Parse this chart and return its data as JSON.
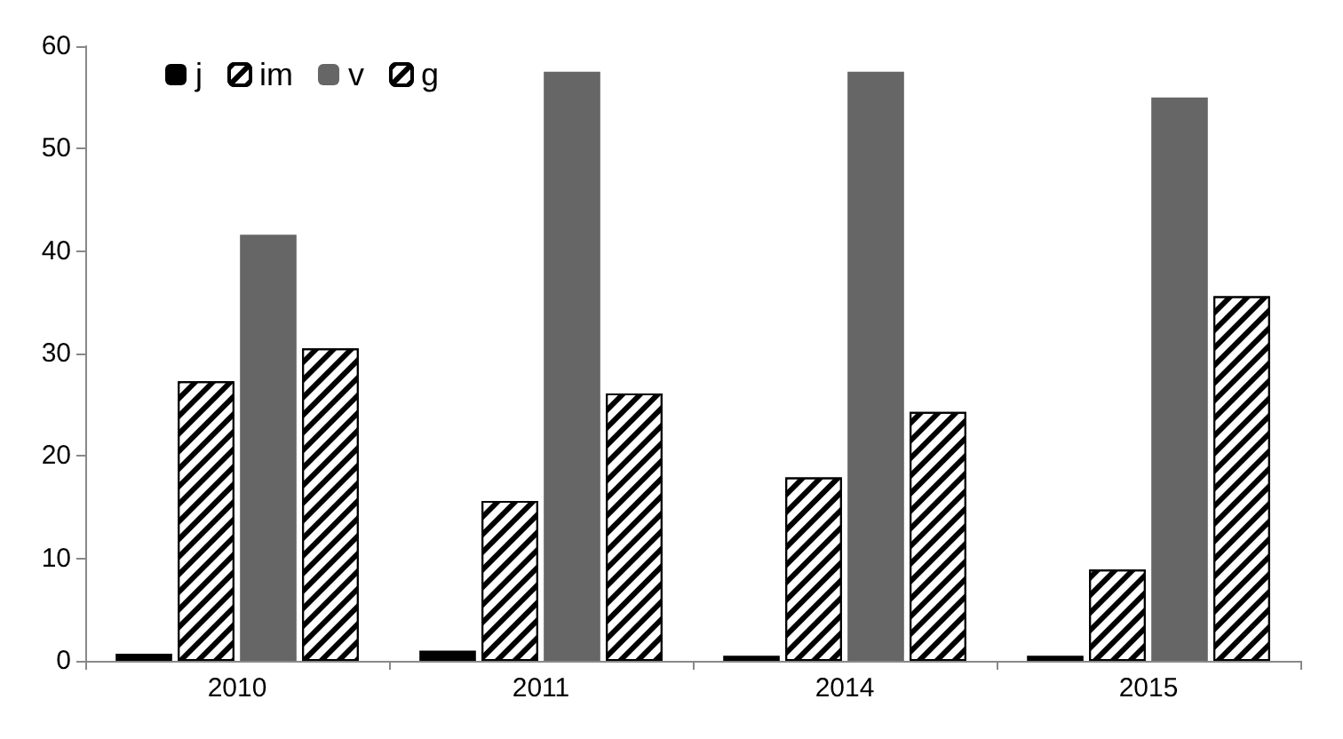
{
  "chart_data": {
    "type": "bar",
    "categories": [
      "2010",
      "2011",
      "2014",
      "2015"
    ],
    "series": [
      {
        "name": "j",
        "color": "#000000",
        "values": [
          0.7,
          1.0,
          0.5,
          0.5
        ]
      },
      {
        "name": "im",
        "color": "#ffffff",
        "values": [
          27.3,
          15.6,
          17.9,
          8.9
        ]
      },
      {
        "name": "v",
        "color": "#666666",
        "values": [
          41.6,
          57.5,
          57.5,
          55.0
        ]
      },
      {
        "name": "g",
        "color": "#ffffff",
        "values": [
          30.5,
          26.1,
          24.3,
          35.6
        ]
      }
    ],
    "ylim": [
      0,
      60
    ],
    "yticks": [
      0,
      10,
      20,
      30,
      40,
      50,
      60
    ],
    "grid": false,
    "legend": "top left"
  }
}
